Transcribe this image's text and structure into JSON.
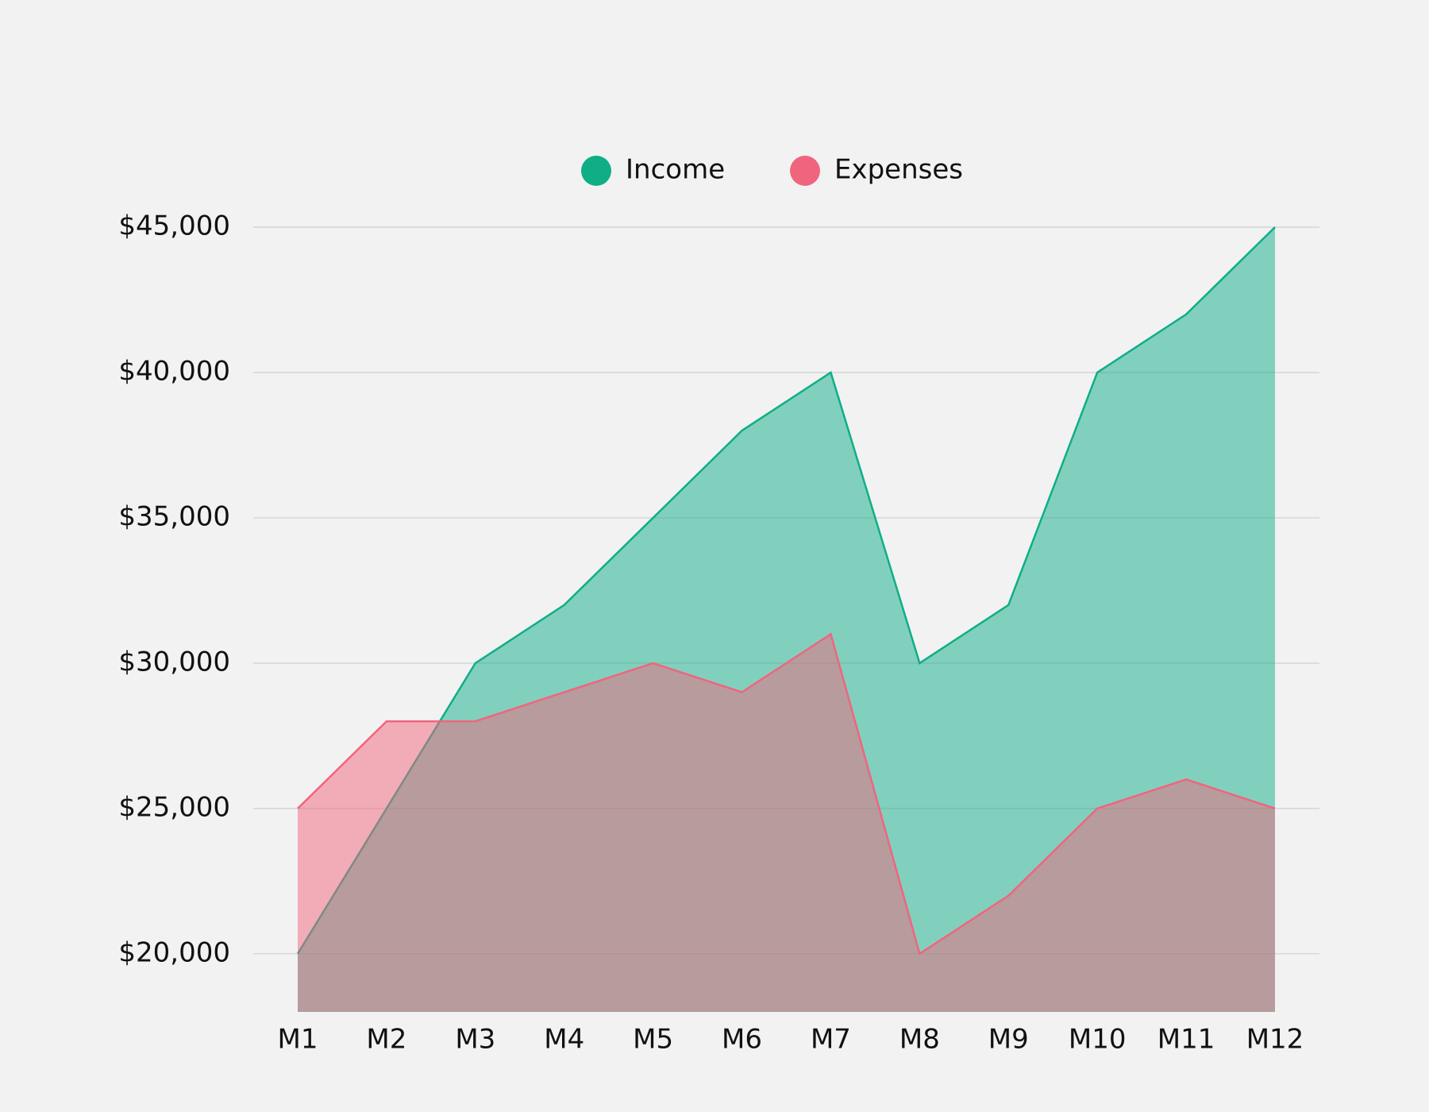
{
  "chart_data": {
    "type": "area",
    "categories": [
      "M1",
      "M2",
      "M3",
      "M4",
      "M5",
      "M6",
      "M7",
      "M8",
      "M9",
      "M10",
      "M11",
      "M12"
    ],
    "series": [
      {
        "name": "Income",
        "color": "#0fae87",
        "values": [
          20000,
          25000,
          30000,
          32000,
          35000,
          38000,
          40000,
          30000,
          32000,
          40000,
          42000,
          45000
        ]
      },
      {
        "name": "Expenses",
        "color": "#f0657e",
        "values": [
          25000,
          28000,
          28000,
          29000,
          30000,
          29000,
          31000,
          20000,
          22000,
          25000,
          26000,
          25000
        ]
      }
    ],
    "ylim": [
      18000,
      45000
    ],
    "yticks": [
      {
        "value": 20000,
        "label": "$20,000"
      },
      {
        "value": 25000,
        "label": "$25,000"
      },
      {
        "value": 30000,
        "label": "$30,000"
      },
      {
        "value": 35000,
        "label": "$35,000"
      },
      {
        "value": 40000,
        "label": "$40,000"
      },
      {
        "value": 45000,
        "label": "$45,000"
      }
    ],
    "grid": true,
    "legend": "top"
  }
}
